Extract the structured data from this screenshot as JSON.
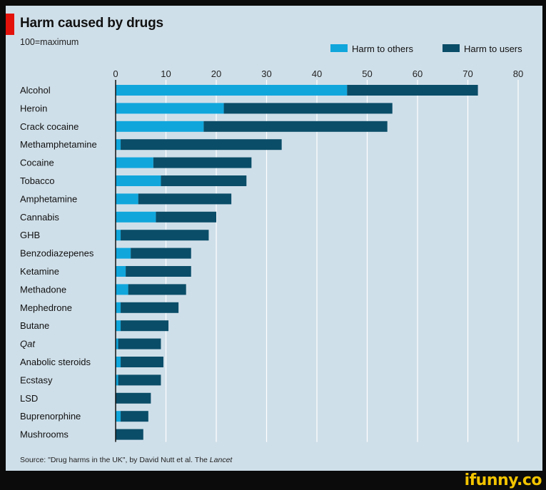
{
  "title": "Harm caused by drugs",
  "subtitle": "100=maximum",
  "source_prefix": "Source: \"Drug harms in the UK\", by David Nutt et al. The ",
  "source_journal": "Lancet",
  "watermark": "ifunny.co",
  "colors": {
    "others": "#10a6dc",
    "users": "#0a4d68",
    "grid": "#ffffff",
    "axis": "#111111"
  },
  "chart_data": {
    "type": "bar",
    "orientation": "horizontal",
    "stacked": true,
    "categories": [
      "Alcohol",
      "Heroin",
      "Crack cocaine",
      "Methamphetamine",
      "Cocaine",
      "Tobacco",
      "Amphetamine",
      "Cannabis",
      "GHB",
      "Benzodiazepenes",
      "Ketamine",
      "Methadone",
      "Mephedrone",
      "Butane",
      "Qat",
      "Anabolic steroids",
      "Ecstasy",
      "LSD",
      "Buprenorphine",
      "Mushrooms"
    ],
    "italic_categories": [
      "Qat"
    ],
    "series": [
      {
        "name": "Harm to others",
        "values": [
          46,
          21.5,
          17.5,
          1,
          7.5,
          9,
          4.5,
          8,
          1,
          3,
          2,
          2.5,
          1,
          1,
          0.5,
          1,
          0.5,
          0,
          1,
          0
        ]
      },
      {
        "name": "Harm to users",
        "values": [
          26,
          33.5,
          36.5,
          32,
          19.5,
          17,
          18.5,
          12,
          17.5,
          12,
          13,
          11.5,
          11.5,
          9.5,
          8.5,
          8.5,
          8.5,
          7,
          5.5,
          5.5
        ]
      }
    ],
    "xlim": [
      0,
      80
    ],
    "xticks": [
      0,
      10,
      20,
      30,
      40,
      50,
      60,
      70,
      80
    ],
    "grid": true,
    "legend": "top-right"
  }
}
